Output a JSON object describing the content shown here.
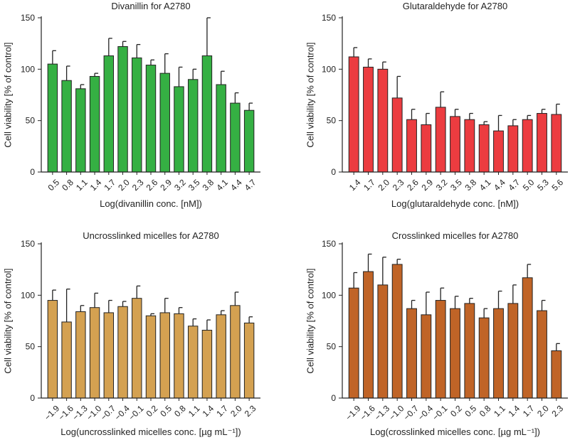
{
  "chart_data": [
    {
      "type": "bar",
      "title": "Divanillin for A2780",
      "xlabel": "Log(divanillin conc. [nM])",
      "ylabel": "Cell viability [% of control]",
      "ylim": [
        0,
        150
      ],
      "yticks": [
        "0",
        "50",
        "100",
        "150"
      ],
      "categories": [
        "0.5",
        "0.8",
        "1.1",
        "1.4",
        "1.7",
        "2.0",
        "2.3",
        "2.6",
        "2.9",
        "3.2",
        "3.5",
        "3.8",
        "4.1",
        "4.4",
        "4.7"
      ],
      "values": [
        105,
        89,
        81,
        93,
        113,
        122,
        111,
        104,
        96,
        83,
        90,
        113,
        85,
        67,
        60
      ],
      "errors": [
        13,
        14,
        4,
        3,
        17,
        5,
        13,
        5,
        19,
        19,
        10,
        37,
        13,
        10,
        7
      ],
      "bar_color": "#35b043",
      "grid": false
    },
    {
      "type": "bar",
      "title": "Glutaraldehyde for A2780",
      "xlabel": "Log(glutaraldehyde conc. [nM])",
      "ylabel": "Cell viability [% of control]",
      "ylim": [
        0,
        150
      ],
      "yticks": [
        "0",
        "50",
        "100",
        "150"
      ],
      "categories": [
        "1.4",
        "1.7",
        "2.0",
        "2.3",
        "2.6",
        "2.9",
        "3.2",
        "3.5",
        "3.8",
        "4.1",
        "4.4",
        "4.7",
        "5.0",
        "5.3",
        "5.6"
      ],
      "values": [
        112,
        102,
        100,
        72,
        51,
        46,
        63,
        54,
        51,
        46,
        40,
        45,
        51,
        57,
        56
      ],
      "errors": [
        9,
        8,
        7,
        21,
        10,
        11,
        15,
        7,
        6,
        3,
        15,
        6,
        4,
        4,
        10
      ],
      "bar_color": "#ec3c40",
      "grid": false
    },
    {
      "type": "bar",
      "title": "Uncrosslinked micelles for A2780",
      "xlabel": "Log(uncrosslinked micelles conc. [µg mL⁻¹])",
      "ylabel": "Cell viability [% of control]",
      "ylim": [
        0,
        150
      ],
      "yticks": [
        "0",
        "50",
        "100",
        "150"
      ],
      "categories": [
        "−1.9",
        "−1.6",
        "−1.3",
        "−1.0",
        "−0.7",
        "−0.4",
        "−0.1",
        "0.2",
        "0.5",
        "0.8",
        "1.1",
        "1.4",
        "1.7",
        "2.0",
        "2.3"
      ],
      "values": [
        95,
        74,
        84,
        88,
        83,
        89,
        97,
        80,
        83,
        82,
        70,
        66,
        81,
        90,
        73
      ],
      "errors": [
        10,
        32,
        6,
        14,
        12,
        5,
        12,
        2,
        14,
        6,
        7,
        10,
        4,
        13,
        6
      ],
      "bar_color": "#d4a151",
      "grid": false
    },
    {
      "type": "bar",
      "title": "Crosslinked micelles for A2780",
      "xlabel": "Log(crosslinked micelles conc. [µg mL⁻¹])",
      "ylabel": "Cell viability [% of control]",
      "ylim": [
        0,
        150
      ],
      "yticks": [
        "0",
        "50",
        "100",
        "150"
      ],
      "categories": [
        "−1.9",
        "−1.6",
        "−1.3",
        "−1.0",
        "−0.7",
        "−0.4",
        "−0.1",
        "0.2",
        "0.5",
        "0.8",
        "1.1",
        "1.4",
        "1.7",
        "2.0",
        "2.3"
      ],
      "values": [
        107,
        123,
        110,
        130,
        87,
        81,
        95,
        87,
        92,
        78,
        87,
        92,
        117,
        85,
        46
      ],
      "errors": [
        15,
        17,
        27,
        5,
        8,
        22,
        12,
        12,
        5,
        9,
        17,
        18,
        13,
        10,
        7
      ],
      "bar_color": "#c06427",
      "grid": false
    }
  ]
}
